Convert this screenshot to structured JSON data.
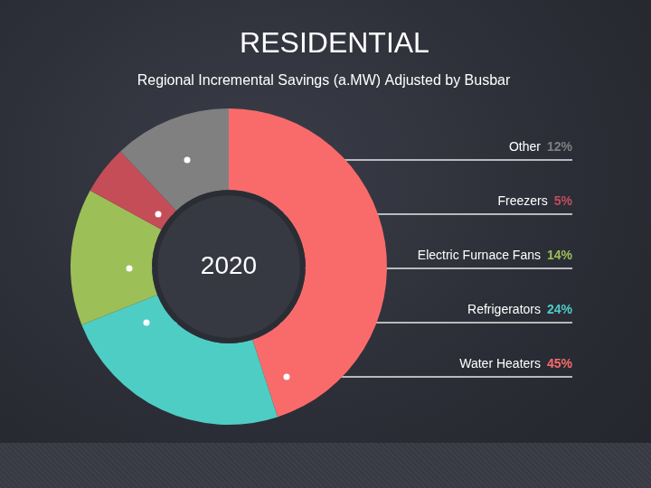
{
  "chart_data": {
    "type": "doughnut",
    "title": "RESIDENTIAL",
    "subtitle": "Regional Incremental Savings (a.MW) Adjusted by Busbar",
    "annotation": "2020",
    "categories": [
      "Water Heaters",
      "Refrigerators",
      "Electric Furnace Fans",
      "Freezers",
      "Other"
    ],
    "values": [
      45,
      24,
      14,
      5,
      12
    ],
    "value_labels": [
      "45%",
      "24%",
      "14%",
      "5%",
      "12%"
    ],
    "colors": [
      "#f96b6b",
      "#4ecdc4",
      "#9dbf58",
      "#c44d58",
      "#808080"
    ]
  }
}
